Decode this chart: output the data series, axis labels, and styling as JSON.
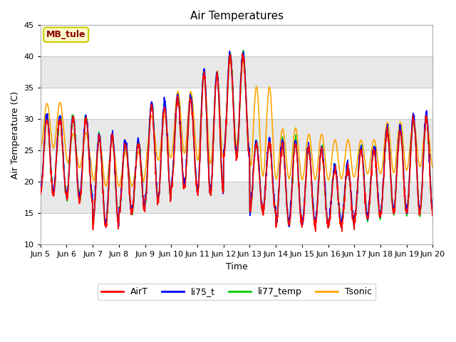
{
  "title": "Air Temperatures",
  "xlabel": "Time",
  "ylabel": "Air Temperature (C)",
  "ylim": [
    10,
    45
  ],
  "annotation_text": "MB_tule",
  "annotation_text_color": "#8B0000",
  "annotation_bg_color": "#FFFACD",
  "annotation_edge_color": "#CCCC00",
  "legend_labels": [
    "AirT",
    "li75_t",
    "li77_temp",
    "Tsonic"
  ],
  "line_colors": [
    "#FF0000",
    "#0000FF",
    "#00CC00",
    "#FFA500"
  ],
  "xtick_labels": [
    "Jun 5",
    "Jun 6",
    "Jun 7",
    "Jun 8",
    "Jun 9",
    "Jun 10",
    "Jun 11",
    "Jun 12",
    "Jun 13",
    "Jun 14",
    "Jun 15",
    "Jun 16",
    "Jun 17",
    "Jun 18",
    "Jun 19",
    "Jun 20"
  ],
  "ytick_values": [
    10,
    15,
    20,
    25,
    30,
    35,
    40,
    45
  ],
  "fig_bg_color": "#FFFFFF",
  "plot_bg_color": "#FFFFFF",
  "band_color": "#E8E8E8",
  "grid_color": "#CCCCCC",
  "line_width": 1.2
}
